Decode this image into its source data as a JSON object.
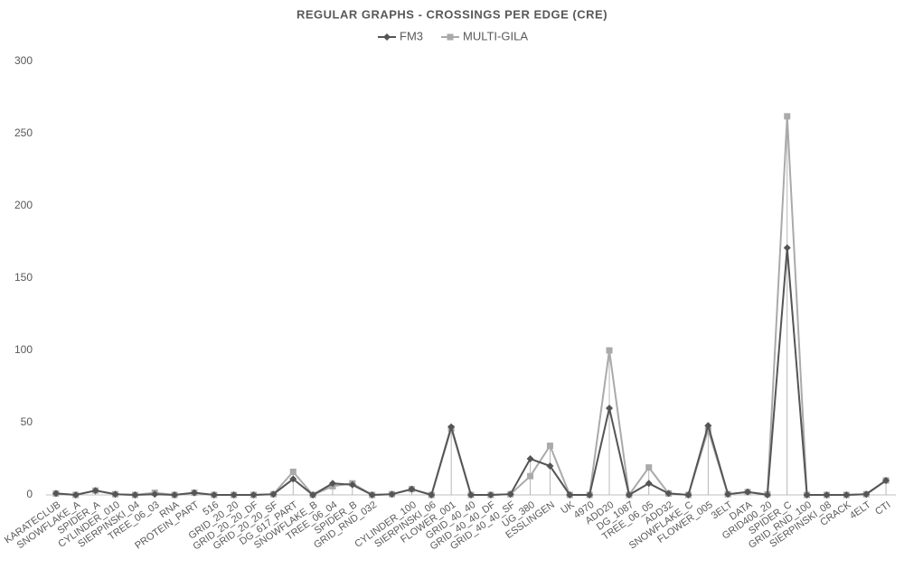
{
  "chart_data": {
    "type": "line",
    "title": "REGULAR GRAPHS - CROSSINGS PER EDGE (CRE)",
    "categories": [
      "KARATECLUB",
      "SNOWFLAKE_A",
      "SPIDER_A",
      "CYLINDER_010",
      "SIERPINSKI_04",
      "TREE_06_03",
      "RNA",
      "PROTEIN_PART",
      "516",
      "GRID_20_20",
      "GRID_20_20_DF",
      "GRID_20_20_SF",
      "DG_617_PART",
      "SNOWFLAKE_B",
      "TREE_06_04",
      "SPIDER_B",
      "GRID_RND_032",
      null,
      "CYLINDER_100",
      "SIERPINSKI_06",
      "FLOWER_001",
      "GRID_40_40",
      "GRID_40_40_DF",
      "GRID_40_40_SF",
      "UG_380",
      "ESSLINGEN",
      "UK",
      "4970",
      "ADD20",
      "DG_1087",
      "TREE_06_05",
      "ADD32",
      "SNOWFLAKE_C",
      "FLOWER_005",
      "3ELT",
      "DATA",
      "GRID400_20",
      "SPIDER_C",
      "GRID_RND_100",
      "SIERPINSKI_08",
      "CRACK",
      "4ELT",
      "CTI"
    ],
    "series": [
      {
        "name": "FM3",
        "color": "#555555",
        "marker": "diamond",
        "values": [
          1,
          0,
          3,
          0.5,
          0,
          0.5,
          0,
          1.5,
          0,
          0,
          0,
          0.5,
          11,
          0,
          8,
          7,
          0,
          0.5,
          4,
          0,
          47,
          0,
          0,
          0.5,
          25,
          20,
          0,
          0,
          60,
          0,
          8,
          1,
          0,
          48,
          0.5,
          2,
          0,
          171,
          0,
          0,
          0,
          0.5,
          10
        ]
      },
      {
        "name": "MULTI-GILA",
        "color": "#aaaaaa",
        "marker": "square",
        "values": [
          1,
          0,
          3,
          0.5,
          0,
          1.5,
          0,
          1.5,
          0,
          0,
          0,
          0.5,
          16,
          0,
          6,
          8,
          0,
          0.5,
          4,
          0,
          46,
          0,
          0,
          0.5,
          13,
          34,
          0,
          0,
          100,
          0,
          19,
          1,
          0,
          45,
          0.5,
          2,
          0.5,
          262,
          0,
          0,
          0,
          0.5,
          10
        ]
      }
    ],
    "ylim": [
      0,
      300
    ],
    "yticks": [
      0,
      50,
      100,
      150,
      200,
      250,
      300
    ],
    "grid": false,
    "drop_lines": true,
    "legend": "top"
  }
}
